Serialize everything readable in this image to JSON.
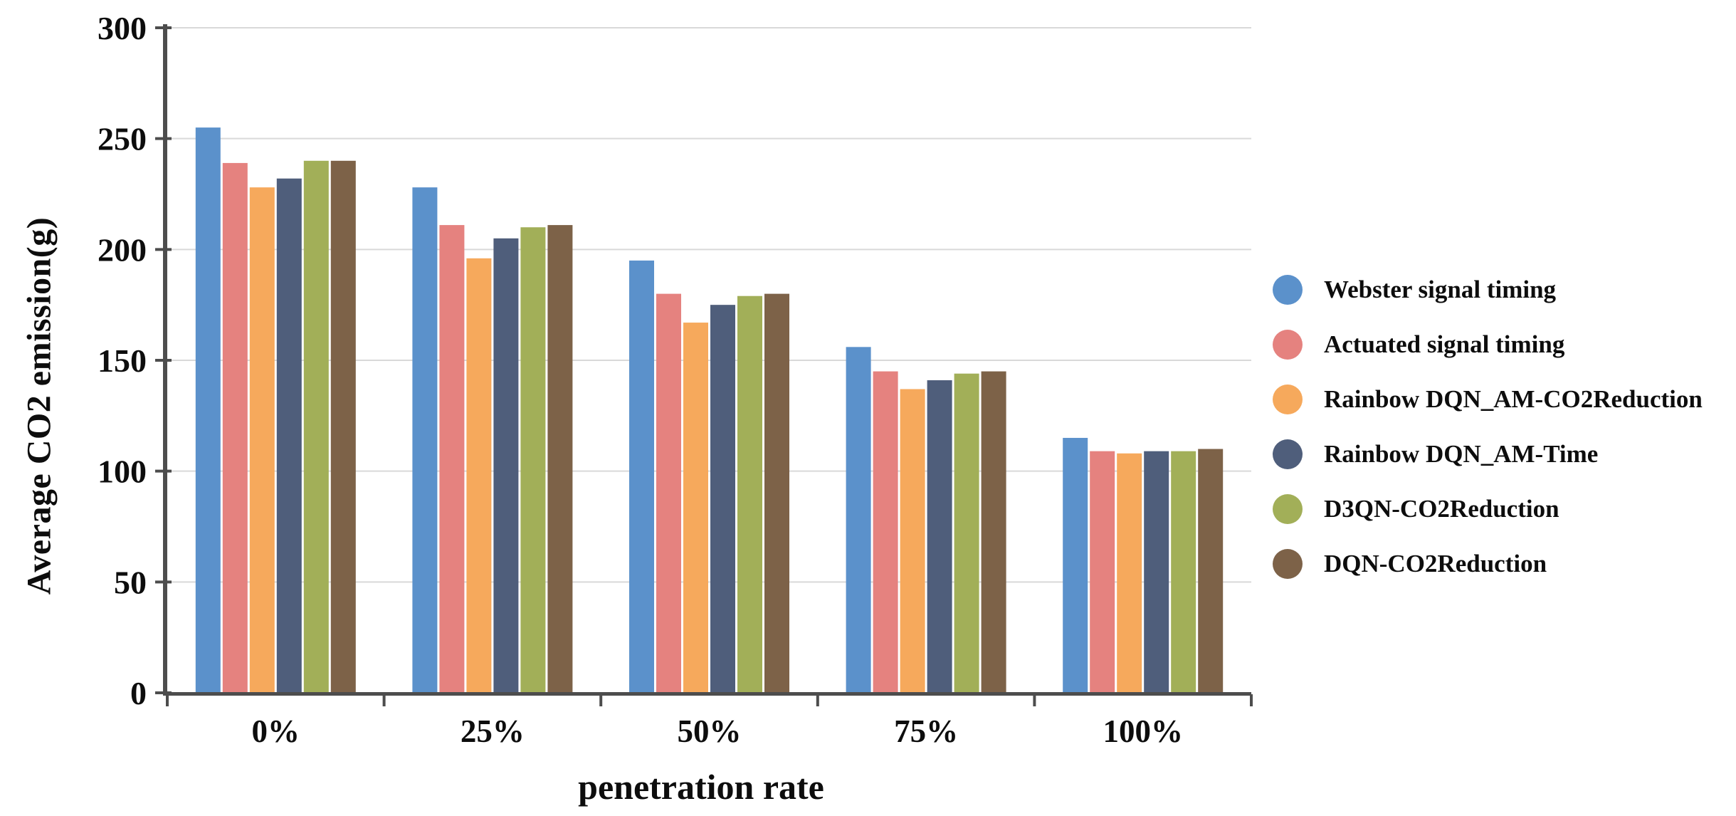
{
  "chart_data": {
    "type": "bar",
    "title": "",
    "xlabel": "penetration rate",
    "ylabel": "Average CO2 emission(g)",
    "categories": [
      "0%",
      "25%",
      "50%",
      "75%",
      "100%"
    ],
    "series": [
      {
        "name": "Webster signal timing",
        "color": "#5B91CB",
        "values": [
          255,
          228,
          195,
          156,
          115
        ]
      },
      {
        "name": "Actuated signal timing",
        "color": "#E5827F",
        "values": [
          239,
          211,
          180,
          145,
          109
        ]
      },
      {
        "name": "Rainbow DQN_AM-CO2Reduction",
        "color": "#F6A95C",
        "values": [
          228,
          196,
          167,
          137,
          108
        ]
      },
      {
        "name": "Rainbow DQN_AM-Time",
        "color": "#4F5E7B",
        "values": [
          232,
          205,
          175,
          141,
          109
        ]
      },
      {
        "name": "D3QN-CO2Reduction",
        "color": "#A2AF58",
        "values": [
          240,
          210,
          179,
          144,
          109
        ]
      },
      {
        "name": "DQN-CO2Reduction",
        "color": "#7D6248",
        "values": [
          240,
          211,
          180,
          145,
          110
        ]
      }
    ],
    "ylim": [
      0,
      300
    ],
    "yticks": [
      0,
      50,
      100,
      150,
      200,
      250,
      300
    ],
    "grid": true,
    "legend_position": "right"
  },
  "colors": {
    "background": "#FFFFFF",
    "axis": "#4D4D4D",
    "gridline": "#D9D9D9",
    "text": "#0D0D0D"
  }
}
